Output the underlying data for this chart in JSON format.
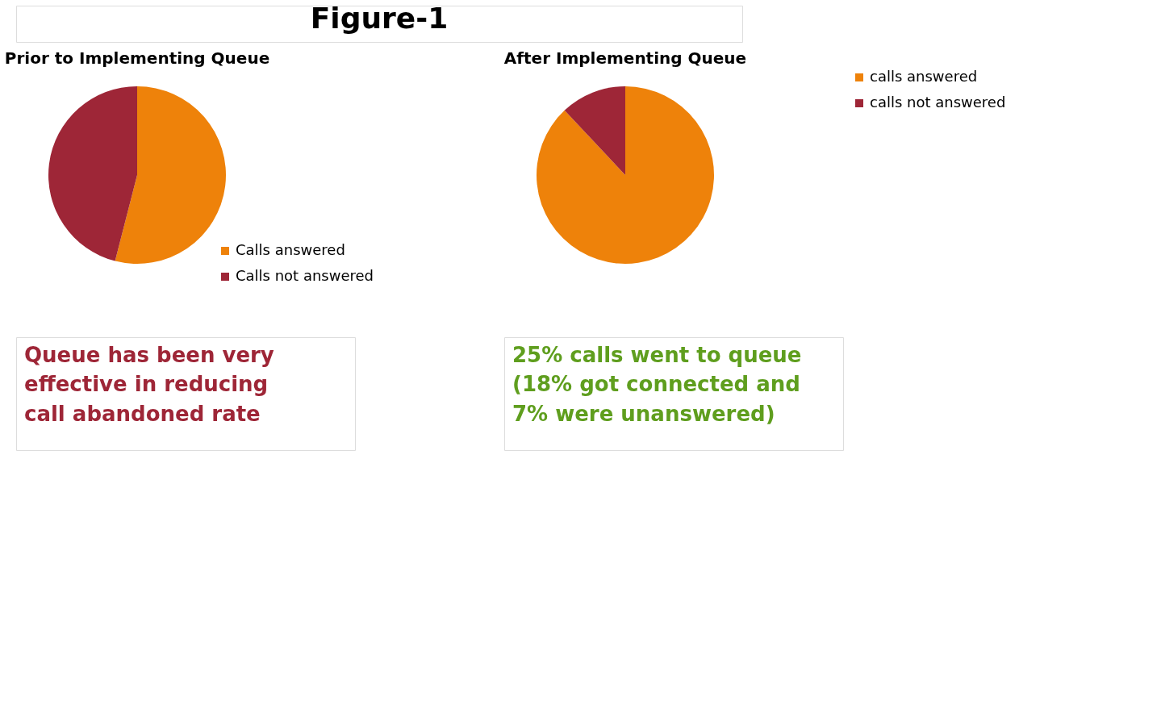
{
  "chart_data": [
    {
      "type": "pie",
      "title": "Prior to Implementing Queue",
      "categories": [
        "Calls answered",
        "Calls not answered"
      ],
      "values": [
        54,
        46
      ],
      "colors": [
        "#ee820a",
        "#9e2637"
      ],
      "legend": "bottom right",
      "annotations": [
        "Figure-1",
        "Queue has been very effective in reducing call abandoned rate"
      ]
    },
    {
      "type": "pie",
      "title": "After Implementing Queue",
      "categories": [
        "calls answered",
        "calls not answered"
      ],
      "values": [
        88,
        12
      ],
      "colors": [
        "#ee820a",
        "#9e2637"
      ],
      "legend": "right",
      "annotations": [
        "25% calls went to queue (18% got connected and 7% were unanswered)"
      ]
    }
  ]
}
